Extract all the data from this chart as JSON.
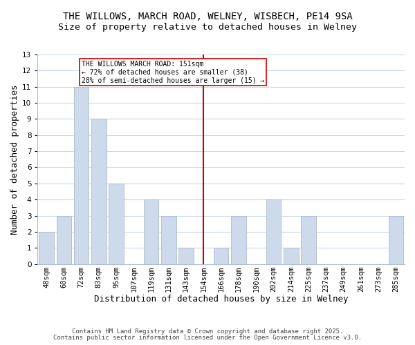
{
  "title": "THE WILLOWS, MARCH ROAD, WELNEY, WISBECH, PE14 9SA",
  "subtitle": "Size of property relative to detached houses in Welney",
  "xlabel": "Distribution of detached houses by size in Welney",
  "ylabel": "Number of detached properties",
  "bar_labels": [
    "48sqm",
    "60sqm",
    "72sqm",
    "83sqm",
    "95sqm",
    "107sqm",
    "119sqm",
    "131sqm",
    "143sqm",
    "154sqm",
    "166sqm",
    "178sqm",
    "190sqm",
    "202sqm",
    "214sqm",
    "225sqm",
    "237sqm",
    "249sqm",
    "261sqm",
    "273sqm",
    "285sqm"
  ],
  "bar_values": [
    2,
    3,
    11,
    9,
    5,
    0,
    4,
    3,
    1,
    0,
    1,
    3,
    0,
    4,
    1,
    3,
    0,
    0,
    0,
    0,
    3
  ],
  "bar_color": "#ccdaeb",
  "bar_edge_color": "#aabcce",
  "vline_color": "#cc0000",
  "annotation_text": "THE WILLOWS MARCH ROAD: 151sqm\n← 72% of detached houses are smaller (38)\n28% of semi-detached houses are larger (15) →",
  "annotation_box_color": "#ffffff",
  "annotation_box_edge": "#cc0000",
  "ylim": [
    0,
    13
  ],
  "yticks": [
    0,
    1,
    2,
    3,
    4,
    5,
    6,
    7,
    8,
    9,
    10,
    11,
    12,
    13
  ],
  "footer_line1": "Contains HM Land Registry data © Crown copyright and database right 2025.",
  "footer_line2": "Contains public sector information licensed under the Open Government Licence v3.0.",
  "title_fontsize": 10,
  "subtitle_fontsize": 9.5,
  "axis_label_fontsize": 9,
  "tick_fontsize": 7.5,
  "footer_fontsize": 6.5
}
